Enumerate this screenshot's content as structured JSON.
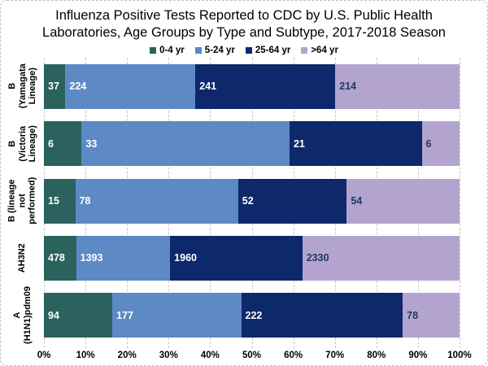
{
  "chart_data": {
    "type": "bar",
    "orientation": "horizontal",
    "stacked": true,
    "stack_mode": "percent",
    "title": "Influenza Positive Tests Reported to CDC by U.S. Public Health Laboratories, Age Groups by Type and Subtype, 2017-2018 Season",
    "legend_position": "top",
    "categories": [
      "B (Yamagata\nLineage)",
      "B (Victoria\nLineage)",
      "B (lineage not\nperformed)",
      "AH3N2",
      "A\n(H1N1)pdm09"
    ],
    "series": [
      {
        "name": "0-4 yr",
        "color": "#2b625e",
        "label_color": "#ffffff",
        "values": [
          37,
          6,
          15,
          478,
          94
        ]
      },
      {
        "name": "5-24 yr",
        "color": "#5d89c5",
        "label_color": "#ffffff",
        "values": [
          224,
          33,
          78,
          1393,
          177
        ]
      },
      {
        "name": "25-64 yr",
        "color": "#0d286b",
        "label_color": "#ffffff",
        "values": [
          241,
          21,
          52,
          1960,
          222
        ]
      },
      {
        "name": ">64 yr",
        "color": "#b3a4cf",
        "label_color": "#1f3864",
        "values": [
          214,
          6,
          54,
          2330,
          78
        ]
      }
    ],
    "x_axis": {
      "tick_labels": [
        "0%",
        "10%",
        "20%",
        "30%",
        "40%",
        "50%",
        "60%",
        "70%",
        "80%",
        "90%",
        "100%"
      ],
      "range_percent": [
        0,
        100
      ],
      "gridlines": "dashed"
    }
  }
}
